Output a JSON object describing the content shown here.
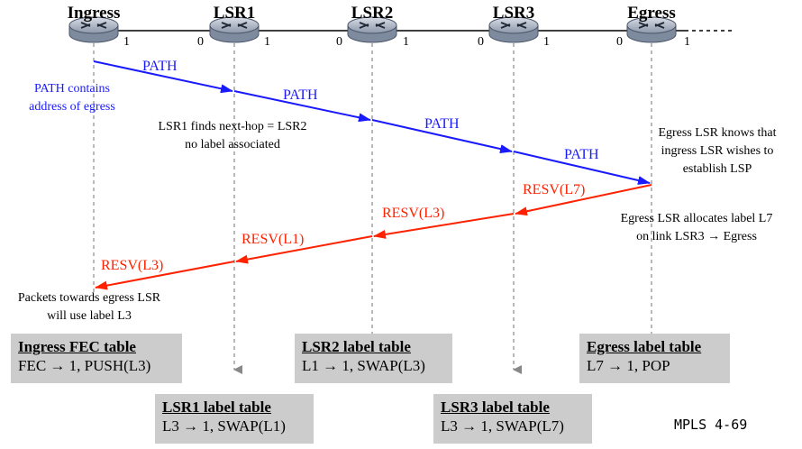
{
  "nodes": [
    {
      "name": "Ingress",
      "left_port": "",
      "right_port": "1"
    },
    {
      "name": "LSR1",
      "left_port": "0",
      "right_port": "1"
    },
    {
      "name": "LSR2",
      "left_port": "0",
      "right_port": "1"
    },
    {
      "name": "LSR3",
      "left_port": "0",
      "right_port": "1"
    },
    {
      "name": "Egress",
      "left_port": "0",
      "right_port": "1"
    }
  ],
  "path_messages": [
    "PATH",
    "PATH",
    "PATH",
    "PATH"
  ],
  "resv_messages": [
    "RESV(L7)",
    "RESV(L3)",
    "RESV(L1)",
    "RESV(L3)"
  ],
  "notes": {
    "path_contains": [
      "PATH contains",
      "address of egress"
    ],
    "lsr1_finds": [
      "LSR1 finds next-hop = LSR2",
      "no label associated"
    ],
    "egress_knows": [
      "Egress LSR knows that",
      "ingress LSR wishes to",
      "establish LSP"
    ],
    "egress_allocates": [
      "Egress LSR allocates label L7",
      "on link LSR3 → Egress"
    ],
    "packets_towards": [
      "Packets towards egress LSR",
      "will use label L3"
    ]
  },
  "tables": {
    "ingress": {
      "title": "Ingress FEC table",
      "row": "FEC → 1, PUSH(L3)"
    },
    "lsr1": {
      "title": "LSR1 label table",
      "row": "L3 → 1, SWAP(L1)"
    },
    "lsr2": {
      "title": "LSR2 label table",
      "row": "L1 → 1, SWAP(L3)"
    },
    "lsr3": {
      "title": "LSR3 label table",
      "row": "L3 → 1, SWAP(L7)"
    },
    "egress": {
      "title": "Egress label table",
      "row": "L7 → 1, POP"
    }
  },
  "colors": {
    "path": "#1a1aff",
    "resv": "#ff2200",
    "note_blue": "#1a1aff",
    "table_bg": "#cccccc",
    "router": "#aab4c4"
  },
  "slide_number": "MPLS 4-69"
}
